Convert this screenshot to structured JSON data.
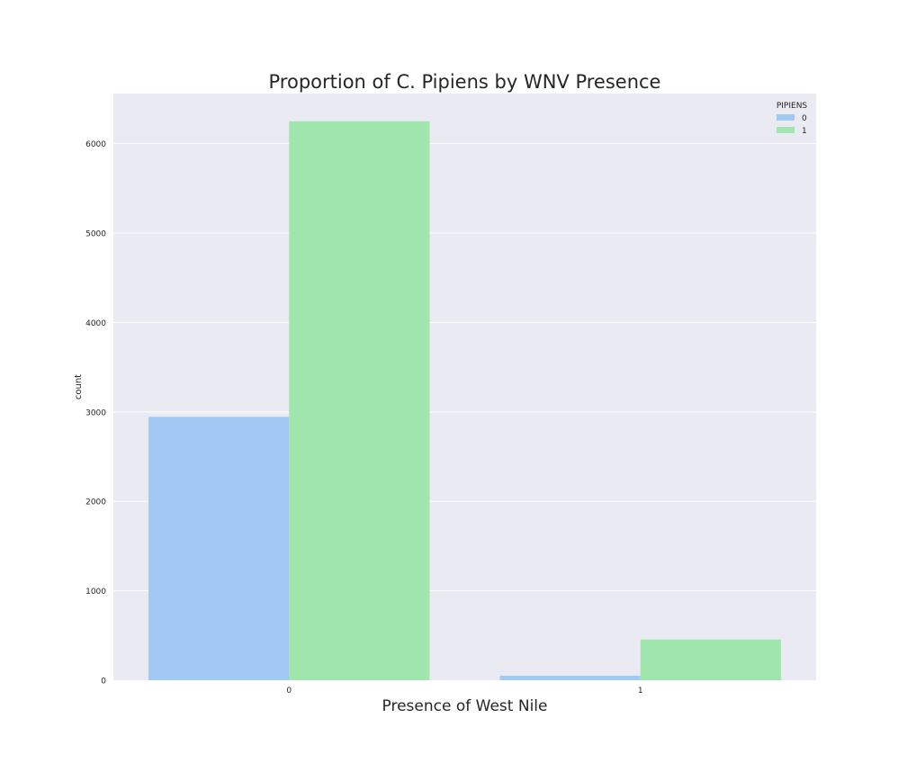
{
  "chart_data": {
    "type": "bar",
    "title": "Proportion of C. Pipiens by WNV Presence",
    "xlabel": "Presence of West Nile",
    "ylabel": "count",
    "categories": [
      "0",
      "1"
    ],
    "series": [
      {
        "name": "0",
        "values": [
          2945,
          50
        ],
        "color": "#a1c9f4"
      },
      {
        "name": "1",
        "values": [
          6250,
          455
        ],
        "color": "#a1e5ae"
      }
    ],
    "ylim": [
      0,
      6560
    ],
    "yticks": [
      0,
      1000,
      2000,
      3000,
      4000,
      5000,
      6000
    ],
    "grid": true,
    "legend": {
      "title": "PIPIENS",
      "placement": "top-right"
    },
    "background_color": "#eaeaf2",
    "gridline_color": "#ffffff"
  }
}
